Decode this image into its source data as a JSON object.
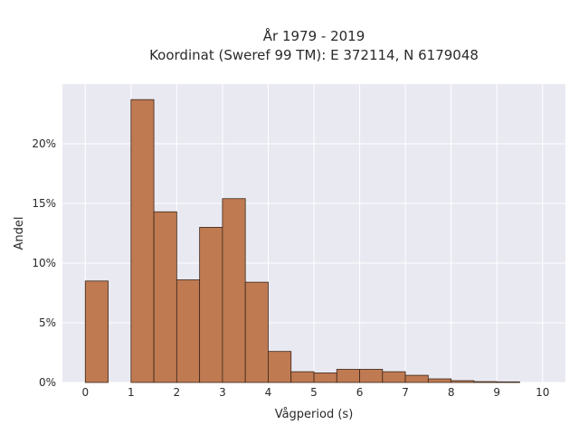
{
  "chart_data": {
    "type": "bar",
    "title_line1": "År 1979 - 2019",
    "title_line2": "Koordinat (Sweref 99 TM): E 372114, N 6179048",
    "xlabel": "Vågperiod (s)",
    "ylabel": "Andel",
    "xlim": [
      -0.5,
      10.5
    ],
    "ylim": [
      0,
      0.25
    ],
    "x_ticks": [
      0,
      1,
      2,
      3,
      4,
      5,
      6,
      7,
      8,
      9,
      10
    ],
    "y_ticks": [
      0,
      0.05,
      0.1,
      0.15,
      0.2
    ],
    "y_tick_labels": [
      "0%",
      "5%",
      "10%",
      "15%",
      "20%"
    ],
    "bin_width": 0.5,
    "bins": [
      {
        "start": 0.0,
        "value": 0.085
      },
      {
        "start": 1.0,
        "value": 0.237
      },
      {
        "start": 1.5,
        "value": 0.143
      },
      {
        "start": 2.0,
        "value": 0.086
      },
      {
        "start": 2.5,
        "value": 0.13
      },
      {
        "start": 3.0,
        "value": 0.154
      },
      {
        "start": 3.5,
        "value": 0.084
      },
      {
        "start": 4.0,
        "value": 0.026
      },
      {
        "start": 4.5,
        "value": 0.009
      },
      {
        "start": 5.0,
        "value": 0.008
      },
      {
        "start": 5.5,
        "value": 0.011
      },
      {
        "start": 6.0,
        "value": 0.011
      },
      {
        "start": 6.5,
        "value": 0.009
      },
      {
        "start": 7.0,
        "value": 0.006
      },
      {
        "start": 7.5,
        "value": 0.003
      },
      {
        "start": 8.0,
        "value": 0.0015
      },
      {
        "start": 8.5,
        "value": 0.0007
      },
      {
        "start": 9.0,
        "value": 0.0005
      }
    ],
    "grid": true,
    "colors": {
      "bar_fill": "#bf7a52",
      "bar_stroke": "#3d2618",
      "plot_bg": "#e9e9f2",
      "grid": "#ffffff"
    }
  }
}
